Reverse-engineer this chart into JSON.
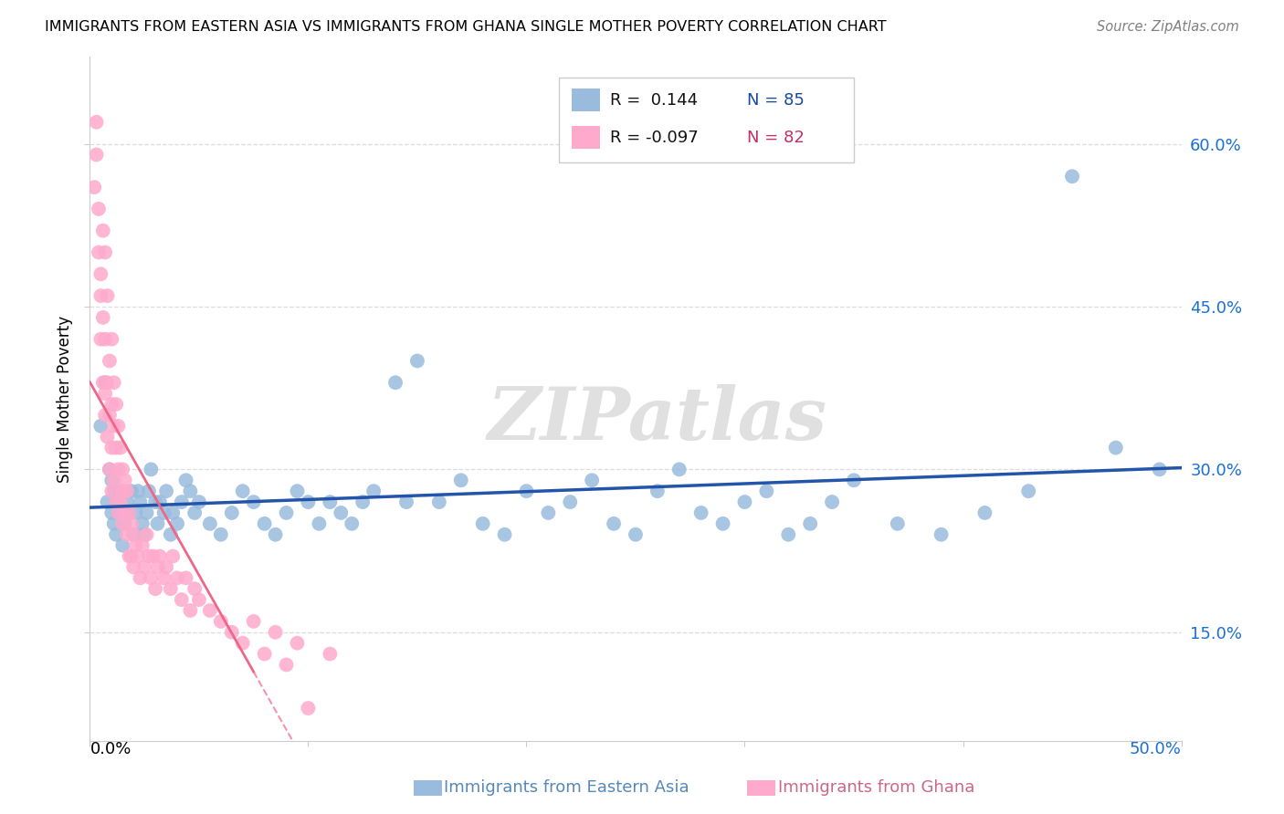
{
  "title": "IMMIGRANTS FROM EASTERN ASIA VS IMMIGRANTS FROM GHANA SINGLE MOTHER POVERTY CORRELATION CHART",
  "source": "Source: ZipAtlas.com",
  "ylabel": "Single Mother Poverty",
  "yticks": [
    "15.0%",
    "30.0%",
    "45.0%",
    "60.0%"
  ],
  "ytick_vals": [
    0.15,
    0.3,
    0.45,
    0.6
  ],
  "xlim": [
    0.0,
    0.5
  ],
  "ylim": [
    0.05,
    0.68
  ],
  "legend_r_blue": "R =  0.144",
  "legend_n_blue": "N = 85",
  "legend_r_pink": "R = -0.097",
  "legend_n_pink": "N = 82",
  "blue_color": "#99BBDD",
  "pink_color": "#FFAACC",
  "blue_line_color": "#2255AA",
  "pink_line_color": "#EE6688",
  "watermark": "ZIPatlas",
  "blue_label": "Immigrants from Eastern Asia",
  "pink_label": "Immigrants from Ghana",
  "blue_scatter_x": [
    0.005,
    0.007,
    0.008,
    0.009,
    0.01,
    0.01,
    0.011,
    0.011,
    0.012,
    0.012,
    0.013,
    0.014,
    0.015,
    0.016,
    0.017,
    0.018,
    0.019,
    0.02,
    0.021,
    0.022,
    0.023,
    0.024,
    0.025,
    0.026,
    0.027,
    0.028,
    0.03,
    0.031,
    0.032,
    0.034,
    0.035,
    0.037,
    0.038,
    0.04,
    0.042,
    0.044,
    0.046,
    0.048,
    0.05,
    0.055,
    0.06,
    0.065,
    0.07,
    0.075,
    0.08,
    0.085,
    0.09,
    0.095,
    0.1,
    0.105,
    0.11,
    0.115,
    0.12,
    0.125,
    0.13,
    0.14,
    0.145,
    0.15,
    0.16,
    0.17,
    0.18,
    0.19,
    0.2,
    0.21,
    0.22,
    0.23,
    0.24,
    0.25,
    0.26,
    0.27,
    0.28,
    0.29,
    0.3,
    0.31,
    0.32,
    0.33,
    0.34,
    0.35,
    0.37,
    0.39,
    0.41,
    0.43,
    0.45,
    0.47,
    0.49
  ],
  "blue_scatter_y": [
    0.34,
    0.38,
    0.27,
    0.3,
    0.29,
    0.26,
    0.28,
    0.25,
    0.27,
    0.24,
    0.26,
    0.28,
    0.23,
    0.25,
    0.27,
    0.26,
    0.28,
    0.24,
    0.26,
    0.28,
    0.27,
    0.25,
    0.24,
    0.26,
    0.28,
    0.3,
    0.27,
    0.25,
    0.27,
    0.26,
    0.28,
    0.24,
    0.26,
    0.25,
    0.27,
    0.29,
    0.28,
    0.26,
    0.27,
    0.25,
    0.24,
    0.26,
    0.28,
    0.27,
    0.25,
    0.24,
    0.26,
    0.28,
    0.27,
    0.25,
    0.27,
    0.26,
    0.25,
    0.27,
    0.28,
    0.38,
    0.27,
    0.4,
    0.27,
    0.29,
    0.25,
    0.24,
    0.28,
    0.26,
    0.27,
    0.29,
    0.25,
    0.24,
    0.28,
    0.3,
    0.26,
    0.25,
    0.27,
    0.28,
    0.24,
    0.25,
    0.27,
    0.29,
    0.25,
    0.24,
    0.26,
    0.28,
    0.57,
    0.32,
    0.3
  ],
  "pink_scatter_x": [
    0.002,
    0.003,
    0.003,
    0.004,
    0.004,
    0.005,
    0.005,
    0.005,
    0.006,
    0.006,
    0.006,
    0.007,
    0.007,
    0.007,
    0.007,
    0.008,
    0.008,
    0.008,
    0.009,
    0.009,
    0.009,
    0.01,
    0.01,
    0.01,
    0.01,
    0.011,
    0.011,
    0.011,
    0.012,
    0.012,
    0.012,
    0.013,
    0.013,
    0.013,
    0.014,
    0.014,
    0.015,
    0.015,
    0.015,
    0.016,
    0.016,
    0.017,
    0.017,
    0.018,
    0.018,
    0.019,
    0.019,
    0.02,
    0.02,
    0.021,
    0.022,
    0.023,
    0.024,
    0.025,
    0.026,
    0.027,
    0.028,
    0.029,
    0.03,
    0.031,
    0.032,
    0.034,
    0.035,
    0.037,
    0.038,
    0.04,
    0.042,
    0.044,
    0.046,
    0.048,
    0.05,
    0.055,
    0.06,
    0.065,
    0.07,
    0.075,
    0.08,
    0.085,
    0.09,
    0.095,
    0.1,
    0.11
  ],
  "pink_scatter_y": [
    0.56,
    0.62,
    0.59,
    0.54,
    0.5,
    0.48,
    0.46,
    0.42,
    0.52,
    0.44,
    0.38,
    0.5,
    0.42,
    0.37,
    0.35,
    0.46,
    0.38,
    0.33,
    0.4,
    0.35,
    0.3,
    0.42,
    0.36,
    0.32,
    0.28,
    0.38,
    0.34,
    0.29,
    0.36,
    0.32,
    0.27,
    0.34,
    0.3,
    0.26,
    0.32,
    0.27,
    0.3,
    0.28,
    0.25,
    0.29,
    0.26,
    0.28,
    0.24,
    0.26,
    0.22,
    0.25,
    0.22,
    0.24,
    0.21,
    0.23,
    0.22,
    0.2,
    0.23,
    0.21,
    0.24,
    0.22,
    0.2,
    0.22,
    0.19,
    0.21,
    0.22,
    0.2,
    0.21,
    0.19,
    0.22,
    0.2,
    0.18,
    0.2,
    0.17,
    0.19,
    0.18,
    0.17,
    0.16,
    0.15,
    0.14,
    0.16,
    0.13,
    0.15,
    0.12,
    0.14,
    0.08,
    0.13
  ]
}
